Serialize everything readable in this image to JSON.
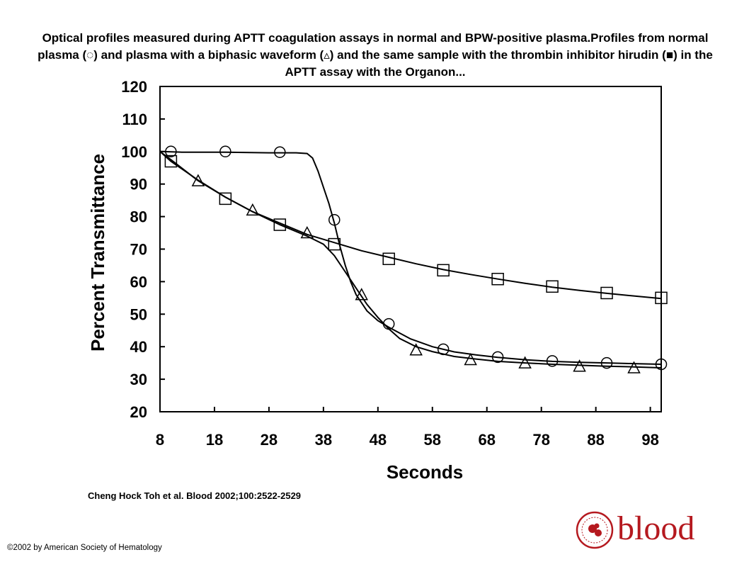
{
  "title": "Optical profiles measured during APTT coagulation assays in normal and BPW-positive plasma.Profiles from normal plasma (◌) and plasma with a biphasic waveform (▵) and the same sample with the thrombin inhibitor hirudin (■) in the APTT assay with the Organon...",
  "citation": "Cheng Hock Toh et al. Blood 2002;100:2522-2529",
  "copyright": "©2002 by American Society of Hematology",
  "logo": {
    "text": "blood",
    "color": "#b5191f"
  },
  "chart_data": {
    "type": "line",
    "xlabel": "Seconds",
    "ylabel": "Percent Transmittance",
    "xlim": [
      8,
      100
    ],
    "ylim": [
      20,
      120
    ],
    "xticks": [
      8,
      18,
      28,
      38,
      48,
      58,
      68,
      78,
      88,
      98
    ],
    "yticks": [
      20,
      30,
      40,
      50,
      60,
      70,
      80,
      90,
      100,
      110,
      120
    ],
    "grid": false,
    "legend": "none",
    "series": [
      {
        "marker": "circle",
        "markers_x": [
          10,
          20,
          30,
          40,
          50,
          60,
          70,
          80,
          90,
          100
        ],
        "markers_y": [
          100,
          100,
          99.8,
          79,
          47,
          39.2,
          36.8,
          35.6,
          35,
          34.6
        ],
        "curve_x": [
          8,
          12,
          20,
          28,
          33,
          35,
          36,
          37,
          38,
          39,
          40,
          41,
          42,
          43,
          44,
          46,
          48,
          50,
          54,
          58,
          62,
          66,
          70,
          75,
          80,
          85,
          90,
          95,
          100
        ],
        "curve_y": [
          100,
          99.8,
          99.8,
          99.6,
          99.6,
          99.4,
          98,
          94,
          89,
          84,
          78,
          71,
          65,
          60,
          56,
          51,
          48,
          46,
          42.4,
          40,
          38.4,
          37.5,
          36.7,
          36,
          35.5,
          35.2,
          35,
          34.8,
          34.6
        ]
      },
      {
        "marker": "triangle",
        "markers_x": [
          15,
          25,
          35,
          45,
          55,
          65,
          75,
          85,
          95
        ],
        "markers_y": [
          91,
          82,
          75,
          56,
          39,
          36,
          35,
          34,
          33.5
        ],
        "curve_x": [
          8,
          10,
          15,
          20,
          25,
          30,
          35,
          38,
          40,
          42,
          44,
          46,
          48,
          50,
          52,
          55,
          58,
          62,
          66,
          70,
          75,
          80,
          85,
          90,
          95,
          100
        ],
        "curve_y": [
          100,
          97,
          91.2,
          86,
          81.5,
          77.5,
          74,
          71.5,
          68,
          63,
          58,
          53,
          49,
          45.5,
          42.5,
          40,
          38.5,
          37,
          36.2,
          35.5,
          35,
          34.6,
          34.3,
          34,
          33.8,
          33.5
        ]
      },
      {
        "marker": "square",
        "markers_x": [
          10,
          20,
          30,
          40,
          50,
          60,
          70,
          80,
          90,
          100
        ],
        "markers_y": [
          97,
          85.5,
          77.5,
          71.5,
          67,
          63.5,
          60.8,
          58.5,
          56.5,
          55
        ],
        "curve_x": [
          8,
          10,
          15,
          20,
          25,
          30,
          35,
          40,
          45,
          50,
          55,
          60,
          65,
          70,
          75,
          80,
          85,
          90,
          95,
          100
        ],
        "curve_y": [
          100,
          97.5,
          91,
          86,
          81.5,
          78,
          74.5,
          72,
          69.5,
          67.5,
          65.5,
          63.7,
          62.2,
          60.8,
          59.5,
          58.3,
          57.3,
          56.4,
          55.6,
          54.8
        ]
      }
    ]
  }
}
